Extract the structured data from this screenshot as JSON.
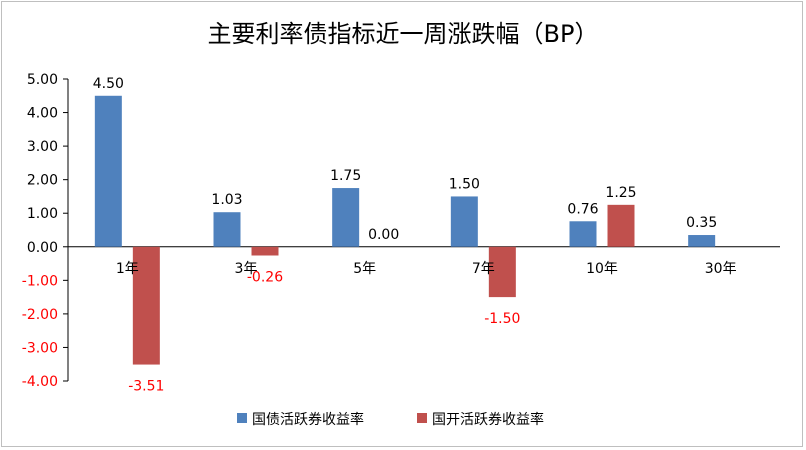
{
  "chart_data": {
    "type": "bar",
    "title": "主要利率债指标近一周涨跌幅（BP）",
    "categories": [
      "1年",
      "3年",
      "5年",
      "7年",
      "10年",
      "30年"
    ],
    "ylim": [
      -4,
      5
    ],
    "yticks": [
      "5.00",
      "4.00",
      "3.00",
      "2.00",
      "1.00",
      "0.00",
      "-1.00",
      "-2.00",
      "-3.00",
      "-4.00"
    ],
    "grid": false,
    "legend_position": "bottom",
    "series": [
      {
        "name": "国债活跃券收益率",
        "color": "#4f81bd",
        "values": [
          4.5,
          1.03,
          1.75,
          1.5,
          0.76,
          0.35
        ],
        "labels": [
          "4.50",
          "1.03",
          "1.75",
          "1.50",
          "0.76",
          "0.35"
        ]
      },
      {
        "name": "国开活跃券收益率",
        "color": "#c0504d",
        "values": [
          -3.51,
          -0.26,
          0.0,
          -1.5,
          1.25,
          null
        ],
        "labels": [
          "-3.51",
          "-0.26",
          "0.00",
          "-1.50",
          "1.25",
          ""
        ]
      }
    ],
    "negative_label_color": "#ff0000",
    "negative_tick_color": "#ff0000"
  }
}
